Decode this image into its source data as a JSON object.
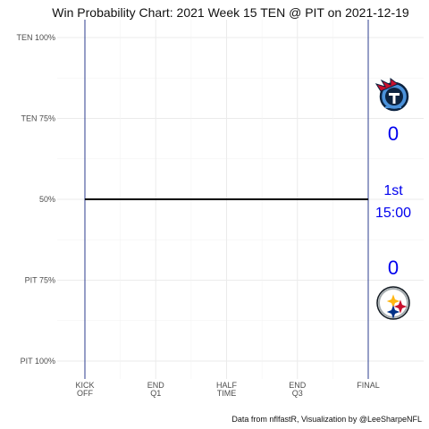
{
  "chart_data": {
    "type": "line",
    "title": "Win Probability Chart: 2021 Week 15 TEN @ PIT on 2021-12-19",
    "y_ticks": [
      {
        "value": 100,
        "label": "TEN 100%"
      },
      {
        "value": 75,
        "label": "TEN 75%"
      },
      {
        "value": 50,
        "label": "50%"
      },
      {
        "value": 25,
        "label": "PIT 75%"
      },
      {
        "value": 0,
        "label": "PIT 100%"
      }
    ],
    "x_ticks": [
      {
        "value": 0,
        "label": [
          "KICK",
          "OFF"
        ]
      },
      {
        "value": 900,
        "label": [
          "END",
          "Q1"
        ]
      },
      {
        "value": 1800,
        "label": [
          "HALF",
          "TIME"
        ]
      },
      {
        "value": 2700,
        "label": [
          "END",
          "Q3"
        ]
      },
      {
        "value": 3600,
        "label": [
          "FINAL"
        ]
      }
    ],
    "xlim": [
      0,
      3600
    ],
    "ylim": [
      0,
      100
    ],
    "x_unit": "game seconds elapsed",
    "y_unit": "TEN win probability (%)",
    "series": [
      {
        "color": "#000000",
        "x": [
          0,
          3600
        ],
        "y": [
          50,
          50
        ]
      }
    ],
    "grid": true,
    "boundary_lines_color": "#2c3e8f",
    "scoreboard": {
      "away_score": "0",
      "home_score": "0",
      "quarter": "1st",
      "clock": "15:00",
      "text_color": "#0000ee"
    },
    "logos": {
      "away": "titans-logo",
      "home": "steelers-logo"
    },
    "caption": "Data from nflfastR, Visualization by @LeeSharpeNFL"
  }
}
